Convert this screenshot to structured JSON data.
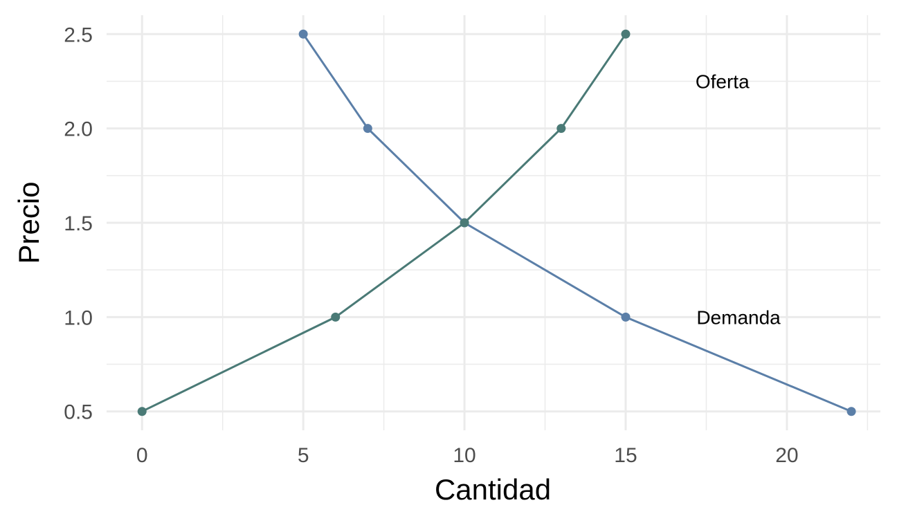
{
  "chart_data": {
    "type": "line",
    "title": "",
    "xlabel": "Cantidad",
    "ylabel": "Precio",
    "xlim": [
      -1.1,
      22.9
    ],
    "ylim": [
      0.4,
      2.6
    ],
    "x_ticks": [
      0,
      5,
      10,
      15,
      20
    ],
    "x_tick_labels": [
      "0",
      "5",
      "10",
      "15",
      "20"
    ],
    "x_minor_ticks": [
      2.5,
      7.5,
      12.5,
      17.5,
      22.5
    ],
    "y_ticks": [
      0.5,
      1.0,
      1.5,
      2.0,
      2.5
    ],
    "y_tick_labels": [
      "0.5",
      "1.0",
      "1.5",
      "2.0",
      "2.5"
    ],
    "y_minor_ticks": [
      0.75,
      1.25,
      1.75,
      2.25
    ],
    "grid": true,
    "legend": "none",
    "series": [
      {
        "key": "demand",
        "color": "#5b7fa8",
        "points": [
          {
            "x": 5,
            "y": 2.5
          },
          {
            "x": 7,
            "y": 2.0
          },
          {
            "x": 10,
            "y": 1.5
          },
          {
            "x": 15,
            "y": 1.0
          },
          {
            "x": 22,
            "y": 0.5
          }
        ]
      },
      {
        "key": "supply",
        "color": "#4a7a76",
        "points": [
          {
            "x": 0,
            "y": 0.5
          },
          {
            "x": 6,
            "y": 1.0
          },
          {
            "x": 10,
            "y": 1.5
          },
          {
            "x": 13,
            "y": 2.0
          },
          {
            "x": 15,
            "y": 2.5
          }
        ]
      }
    ],
    "annotations": [
      {
        "text": "Oferta",
        "x": 18,
        "y": 2.25
      },
      {
        "text": "Demanda",
        "x": 18.5,
        "y": 1.0
      }
    ]
  }
}
